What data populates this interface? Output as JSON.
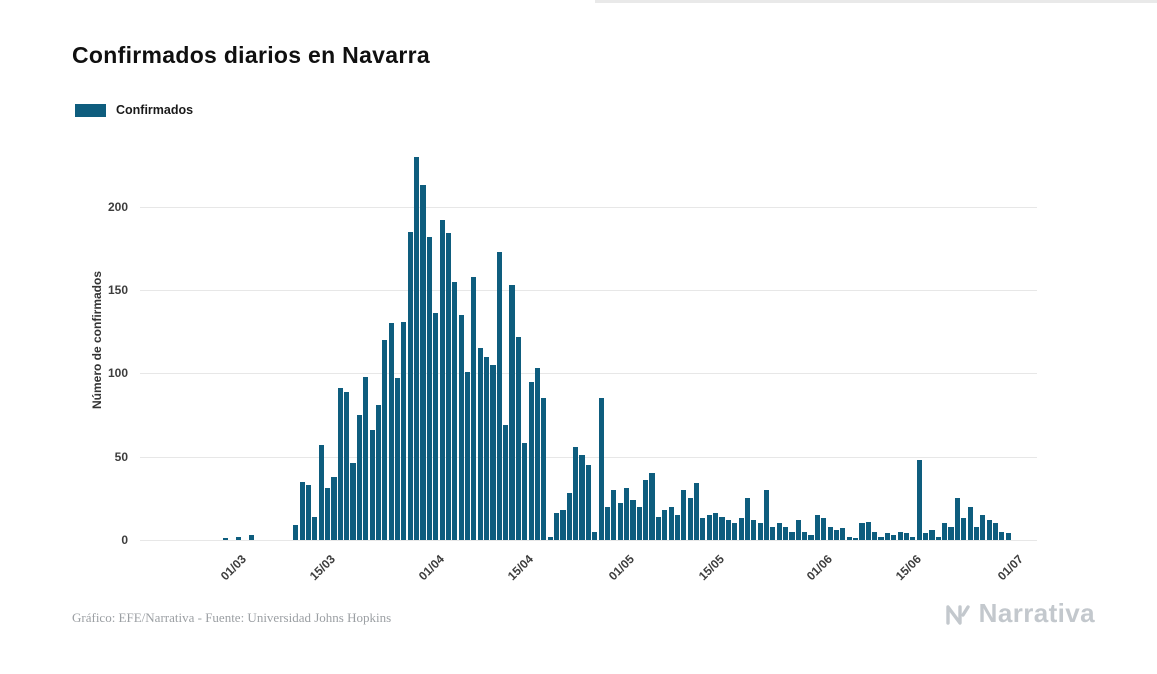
{
  "chart_data": {
    "type": "bar",
    "title": "Confirmados diarios en Navarra",
    "ylabel": "Número de confirmados",
    "xlabel": "",
    "ylim": [
      0,
      240
    ],
    "yticks": [
      0,
      50,
      100,
      150,
      200
    ],
    "grid": true,
    "legend_position": "top-left",
    "legend": [
      {
        "label": "Confirmados",
        "color": "#0e5d7e"
      }
    ],
    "x_slots": 141,
    "dates": [
      "15/02",
      "16/02",
      "17/02",
      "18/02",
      "19/02",
      "20/02",
      "21/02",
      "22/02",
      "23/02",
      "24/02",
      "25/02",
      "26/02",
      "27/02",
      "28/02",
      "29/02",
      "01/03",
      "02/03",
      "03/03",
      "04/03",
      "05/03",
      "06/03",
      "07/03",
      "08/03",
      "09/03",
      "10/03",
      "11/03",
      "12/03",
      "13/03",
      "14/03",
      "15/03",
      "16/03",
      "17/03",
      "18/03",
      "19/03",
      "20/03",
      "21/03",
      "22/03",
      "23/03",
      "24/03",
      "25/03",
      "26/03",
      "27/03",
      "28/03",
      "29/03",
      "30/03",
      "31/03",
      "01/04",
      "02/04",
      "03/04",
      "04/04",
      "05/04",
      "06/04",
      "07/04",
      "08/04",
      "09/04",
      "10/04",
      "11/04",
      "12/04",
      "13/04",
      "14/04",
      "15/04",
      "16/04",
      "17/04",
      "18/04",
      "19/04",
      "20/04",
      "21/04",
      "22/04",
      "23/04",
      "24/04",
      "25/04",
      "26/04",
      "27/04",
      "28/04",
      "29/04",
      "30/04",
      "01/05",
      "02/05",
      "03/05",
      "04/05",
      "05/05",
      "06/05",
      "07/05",
      "08/05",
      "09/05",
      "10/05",
      "11/05",
      "12/05",
      "13/05",
      "14/05",
      "15/05",
      "16/05",
      "17/05",
      "18/05",
      "19/05",
      "20/05",
      "21/05",
      "22/05",
      "23/05",
      "24/05",
      "25/05",
      "26/05",
      "27/05",
      "28/05",
      "29/05",
      "30/05",
      "31/05",
      "01/06",
      "02/06",
      "03/06",
      "04/06",
      "05/06",
      "06/06",
      "07/06",
      "08/06",
      "09/06",
      "10/06",
      "11/06",
      "12/06",
      "13/06",
      "14/06",
      "15/06",
      "16/06",
      "17/06",
      "18/06",
      "19/06",
      "20/06",
      "21/06",
      "22/06",
      "23/06",
      "24/06",
      "25/06",
      "26/06",
      "27/06",
      "28/06",
      "29/06",
      "30/06"
    ],
    "values": [
      0,
      0,
      0,
      0,
      0,
      0,
      0,
      0,
      0,
      0,
      0,
      0,
      0,
      1,
      0,
      2,
      0,
      3,
      0,
      0,
      0,
      0,
      0,
      0,
      9,
      35,
      33,
      14,
      57,
      31,
      38,
      91,
      89,
      46,
      75,
      98,
      66,
      81,
      120,
      130,
      97,
      131,
      185,
      230,
      213,
      182,
      136,
      192,
      184,
      155,
      135,
      101,
      158,
      115,
      110,
      105,
      173,
      69,
      153,
      122,
      58,
      95,
      103,
      85,
      2,
      16,
      18,
      28,
      56,
      51,
      45,
      5,
      85,
      20,
      30,
      22,
      31,
      24,
      20,
      36,
      40,
      14,
      18,
      20,
      15,
      30,
      25,
      34,
      13,
      15,
      16,
      14,
      12,
      10,
      13,
      25,
      12,
      10,
      30,
      8,
      10,
      8,
      5,
      12,
      5,
      3,
      15,
      13,
      8,
      6,
      7,
      2,
      1,
      10,
      11,
      5,
      2,
      4,
      3,
      5,
      4,
      2,
      48,
      4,
      6,
      2,
      10,
      8,
      25,
      13,
      20,
      8,
      15,
      12,
      10,
      5,
      4
    ],
    "xticks": [
      {
        "label": "01/03",
        "index": 15
      },
      {
        "label": "15/03",
        "index": 29
      },
      {
        "label": "01/04",
        "index": 46
      },
      {
        "label": "15/04",
        "index": 60
      },
      {
        "label": "01/05",
        "index": 76
      },
      {
        "label": "15/05",
        "index": 90
      },
      {
        "label": "01/06",
        "index": 107
      },
      {
        "label": "15/06",
        "index": 121
      },
      {
        "label": "01/07",
        "index": 137
      }
    ]
  },
  "footer": {
    "credit": "Gráfico: EFE/Narrativa - Fuente: Universidad Johns Hopkins",
    "brand": "Narrativa"
  }
}
